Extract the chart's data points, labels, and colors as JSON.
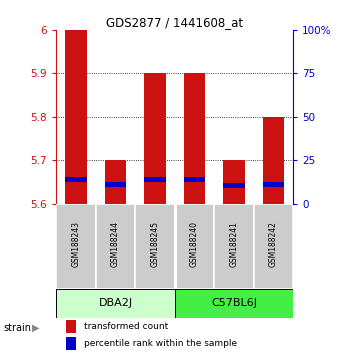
{
  "title": "GDS2877 / 1441608_at",
  "samples": [
    "GSM188243",
    "GSM188244",
    "GSM188245",
    "GSM188240",
    "GSM188241",
    "GSM188242"
  ],
  "group_labels": [
    "DBA2J",
    "C57BL6J"
  ],
  "bar_bottom": 5.6,
  "red_tops": [
    6.0,
    5.7,
    5.9,
    5.9,
    5.7,
    5.8
  ],
  "blue_vals": [
    5.655,
    5.645,
    5.655,
    5.655,
    5.642,
    5.645
  ],
  "ylim": [
    5.6,
    6.0
  ],
  "yticks_left": [
    5.6,
    5.7,
    5.8,
    5.9,
    6.0
  ],
  "ytick_labels_left": [
    "5.6",
    "5.7",
    "5.8",
    "5.9",
    "6"
  ],
  "yticks_right": [
    0,
    25,
    50,
    75,
    100
  ],
  "ytick_labels_right": [
    "0",
    "25",
    "50",
    "75",
    "100%"
  ],
  "red_color": "#cc1111",
  "blue_color": "#0000cc",
  "bar_width": 0.55,
  "sample_box_color": "#cccccc",
  "group1_box_color": "#ccffcc",
  "group2_box_color": "#44ee44",
  "legend_red_label": "transformed count",
  "legend_blue_label": "percentile rank within the sample",
  "strain_label": "strain",
  "blue_bar_height": 0.012
}
